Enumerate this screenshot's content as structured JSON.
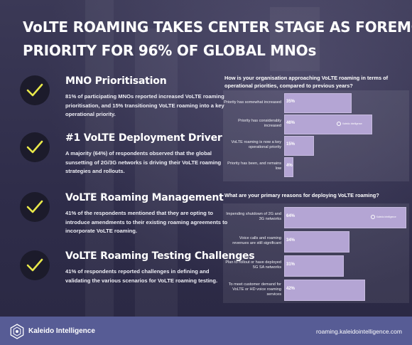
{
  "title_lines": [
    "VoLTE ROAMING TAKES CENTER STAGE AS FOREMOST",
    "PRIORITY FOR 96% OF GLOBAL MNOs"
  ],
  "features": [
    {
      "heading": "MNO Prioritisation",
      "body": "81% of participating MNOs reported increased VoLTE roaming prioritisation, and 15% transitioning VoLTE roaming into a key operational priority."
    },
    {
      "heading": "#1 VoLTE Deployment Driver",
      "body": "A majority (64%) of respondents observed that the global sunsetting of 2G/3G networks is driving their VoLTE roaming strategies and rollouts."
    },
    {
      "heading": "VoLTE Roaming Management",
      "body": "41% of the respondents mentioned that they are opting to introduce amendments to their existing roaming agreements to incorporate VoLTE roaming."
    },
    {
      "heading": "VoLTE Roaming Testing Challenges",
      "body": "41% of respondents reported challenges in defining and validating the various scenarios for VoLTE roaming testing."
    }
  ],
  "icons": {
    "check": "checkmark-icon",
    "logo": "kaleido-logo-icon"
  },
  "colors": {
    "bar": "#b4a5d4",
    "check": "#e8e84a",
    "footer": "#575c95"
  },
  "chart_data": [
    {
      "type": "bar",
      "orientation": "horizontal",
      "title": "How is your organisation approaching VoLTE roaming in terms of operational priorities, compared to previous years?",
      "categories": [
        "Priority has somewhat increased",
        "Priority has considerably increased",
        "VoLTE roaming is now a key operational priority",
        "Priority has been, and remains low"
      ],
      "values": [
        35,
        46,
        15,
        4
      ],
      "value_labels": [
        "35%",
        "46%",
        "15%",
        "4%"
      ],
      "xlim": [
        0,
        64
      ],
      "grid": false,
      "watermark": "Kaleido Intelligence"
    },
    {
      "type": "bar",
      "orientation": "horizontal",
      "title": "What are your primary reasons for deploying VoLTE roaming?",
      "categories": [
        "Impending shutdown of 2G and 3G networks",
        "Voice calls and roaming revenues are still significant",
        "Plan to rollout or have deployed 5G SA networks",
        "To meet customer demand for VoLTE or HD voice roaming services"
      ],
      "values": [
        64,
        34,
        31,
        42
      ],
      "value_labels": [
        "64%",
        "34%",
        "31%",
        "42%"
      ],
      "xlim": [
        0,
        64
      ],
      "grid": false,
      "watermark": "Kaleido Intelligence"
    }
  ],
  "footer": {
    "brand": "Kaleido Intelligence",
    "url": "roaming.kaleidointelligence.com"
  }
}
